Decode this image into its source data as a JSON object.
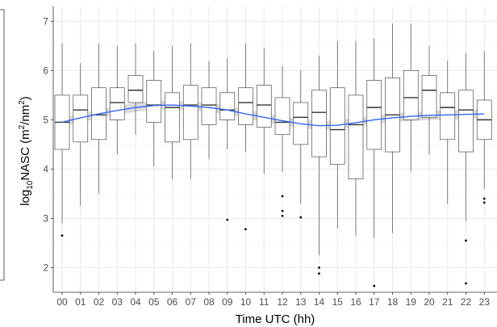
{
  "chart_data": {
    "type": "box",
    "title": "",
    "xlabel": "Time UTC (hh)",
    "ylabel": {
      "prefix": "log",
      "subscript": "10",
      "main": "NASC (m",
      "sup1": "2",
      "mid": "/nm",
      "sup2": "2",
      "suffix": ")"
    },
    "ylim": [
      1.5,
      7.3
    ],
    "yticks": [
      "2",
      "3",
      "4",
      "5",
      "6",
      "7"
    ],
    "grid": true,
    "categories": [
      "00",
      "01",
      "02",
      "03",
      "04",
      "05",
      "06",
      "07",
      "08",
      "09",
      "10",
      "11",
      "12",
      "13",
      "14",
      "15",
      "16",
      "17",
      "18",
      "19",
      "20",
      "21",
      "22",
      "23"
    ],
    "boxes": [
      {
        "min": 2.9,
        "q1": 4.4,
        "median": 4.95,
        "q3": 5.5,
        "max": 6.55,
        "outliers": [
          2.65
        ]
      },
      {
        "min": 3.25,
        "q1": 4.55,
        "median": 5.2,
        "q3": 5.5,
        "max": 6.15,
        "outliers": []
      },
      {
        "min": 3.5,
        "q1": 4.6,
        "median": 5.1,
        "q3": 5.65,
        "max": 6.55,
        "outliers": []
      },
      {
        "min": 4.3,
        "q1": 5.0,
        "median": 5.35,
        "q3": 5.65,
        "max": 6.5,
        "outliers": []
      },
      {
        "min": 4.7,
        "q1": 5.35,
        "median": 5.6,
        "q3": 5.9,
        "max": 6.55,
        "outliers": []
      },
      {
        "min": 4.05,
        "q1": 4.95,
        "median": 5.3,
        "q3": 5.8,
        "max": 6.4,
        "outliers": []
      },
      {
        "min": 3.8,
        "q1": 4.55,
        "median": 5.25,
        "q3": 5.55,
        "max": 6.5,
        "outliers": []
      },
      {
        "min": 3.8,
        "q1": 4.6,
        "median": 5.3,
        "q3": 5.7,
        "max": 6.55,
        "outliers": []
      },
      {
        "min": 4.2,
        "q1": 4.9,
        "median": 5.3,
        "q3": 5.65,
        "max": 6.2,
        "outliers": []
      },
      {
        "min": 4.4,
        "q1": 5.0,
        "median": 5.2,
        "q3": 5.55,
        "max": 6.25,
        "outliers": [
          2.97
        ]
      },
      {
        "min": 4.35,
        "q1": 4.9,
        "median": 5.35,
        "q3": 5.65,
        "max": 6.55,
        "outliers": [
          2.78
        ]
      },
      {
        "min": 3.9,
        "q1": 4.85,
        "median": 5.3,
        "q3": 5.7,
        "max": 6.45,
        "outliers": []
      },
      {
        "min": 3.95,
        "q1": 4.7,
        "median": 4.95,
        "q3": 5.45,
        "max": 6.1,
        "outliers": [
          3.45,
          3.15,
          3.05
        ]
      },
      {
        "min": 3.3,
        "q1": 4.5,
        "median": 5.05,
        "q3": 5.35,
        "max": 6.0,
        "outliers": [
          3.02
        ]
      },
      {
        "min": 2.25,
        "q1": 4.25,
        "median": 5.15,
        "q3": 5.6,
        "max": 6.3,
        "outliers": [
          2.0,
          1.88
        ]
      },
      {
        "min": 2.8,
        "q1": 4.1,
        "median": 4.8,
        "q3": 5.65,
        "max": 6.6,
        "outliers": []
      },
      {
        "min": 2.65,
        "q1": 3.8,
        "median": 4.9,
        "q3": 5.5,
        "max": 6.6,
        "outliers": []
      },
      {
        "min": 2.6,
        "q1": 4.4,
        "median": 5.25,
        "q3": 5.8,
        "max": 6.65,
        "outliers": [
          1.63
        ]
      },
      {
        "min": 2.7,
        "q1": 4.35,
        "median": 5.1,
        "q3": 5.85,
        "max": 6.95,
        "outliers": []
      },
      {
        "min": 3.95,
        "q1": 5.0,
        "median": 5.45,
        "q3": 6.0,
        "max": 6.95,
        "outliers": []
      },
      {
        "min": 4.3,
        "q1": 5.05,
        "median": 5.6,
        "q3": 5.9,
        "max": 6.5,
        "outliers": []
      },
      {
        "min": 3.3,
        "q1": 4.6,
        "median": 5.25,
        "q3": 5.55,
        "max": 6.2,
        "outliers": []
      },
      {
        "min": 2.95,
        "q1": 4.35,
        "median": 5.2,
        "q3": 5.6,
        "max": 6.35,
        "outliers": [
          2.55,
          1.68
        ]
      },
      {
        "min": 3.6,
        "q1": 4.6,
        "median": 5.0,
        "q3": 5.4,
        "max": 6.4,
        "outliers": [
          3.4,
          3.32
        ]
      }
    ],
    "smooth": {
      "x": [
        0,
        1,
        2,
        3,
        4,
        5,
        6,
        7,
        8,
        9,
        10,
        11,
        12,
        13,
        14,
        15,
        16,
        17,
        18,
        19,
        20,
        21,
        22,
        23
      ],
      "y": [
        4.95,
        5.04,
        5.12,
        5.19,
        5.25,
        5.29,
        5.3,
        5.28,
        5.25,
        5.2,
        5.12,
        5.05,
        4.98,
        4.92,
        4.88,
        4.89,
        4.94,
        5.0,
        5.04,
        5.07,
        5.09,
        5.1,
        5.11,
        5.12
      ],
      "band": 0.09,
      "color": "#3366ff",
      "band_color": "#999999"
    },
    "panel_background": "#ffffff",
    "grid_color": "#ebebeb",
    "box_stroke": "#4d4d4d"
  }
}
